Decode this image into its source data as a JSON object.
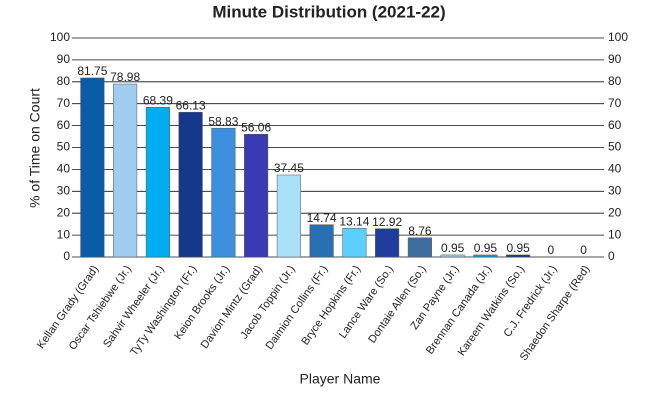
{
  "chart_data": {
    "type": "bar",
    "title": "Minute Distribution (2021-22)",
    "x_label": "Player Name",
    "y_label": "% of Time on Court",
    "categories": [
      "Kellan Grady (Grad)",
      "Oscar Tshiebwe (Jr.)",
      "Sahvir Wheeler (Jr.)",
      "TyTy Washington (Fr.)",
      "Keion Brooks (Jr.)",
      "Davion Mintz (Grad)",
      "Jacob Toppin (Jr.)",
      "Daimion Collins (Fr.)",
      "Bryce Hopkins (Fr.)",
      "Lance Ware (So.)",
      "Dontaie Allen (So.)",
      "Zan Payne (Jr.)",
      "Brennan Canada (Jr.)",
      "Kareem Watkins (So.)",
      "C.J. Fredrick (Jr.)",
      "Shaedon Sharpe (Red)"
    ],
    "values": [
      81.75,
      78.98,
      68.39,
      66.13,
      58.83,
      56.06,
      37.45,
      14.74,
      13.14,
      12.92,
      8.76,
      0.95,
      0.95,
      0.95,
      0,
      0
    ],
    "colors": [
      "#0a5ca8",
      "#9fcdf0",
      "#00aeef",
      "#16388a",
      "#3d90df",
      "#3a3ab5",
      "#a9e1f8",
      "#2a6fb2",
      "#5dcfff",
      "#1e3d9e",
      "#3c6d9d",
      "#9fcdf0",
      "#09a2e2",
      "#1b3a8c",
      "#5080d0",
      "#3a3ab5"
    ],
    "ylim": [
      0,
      100
    ],
    "yticks": [
      0,
      10,
      20,
      30,
      40,
      50,
      60,
      70,
      80,
      90,
      100
    ],
    "grid": true
  }
}
